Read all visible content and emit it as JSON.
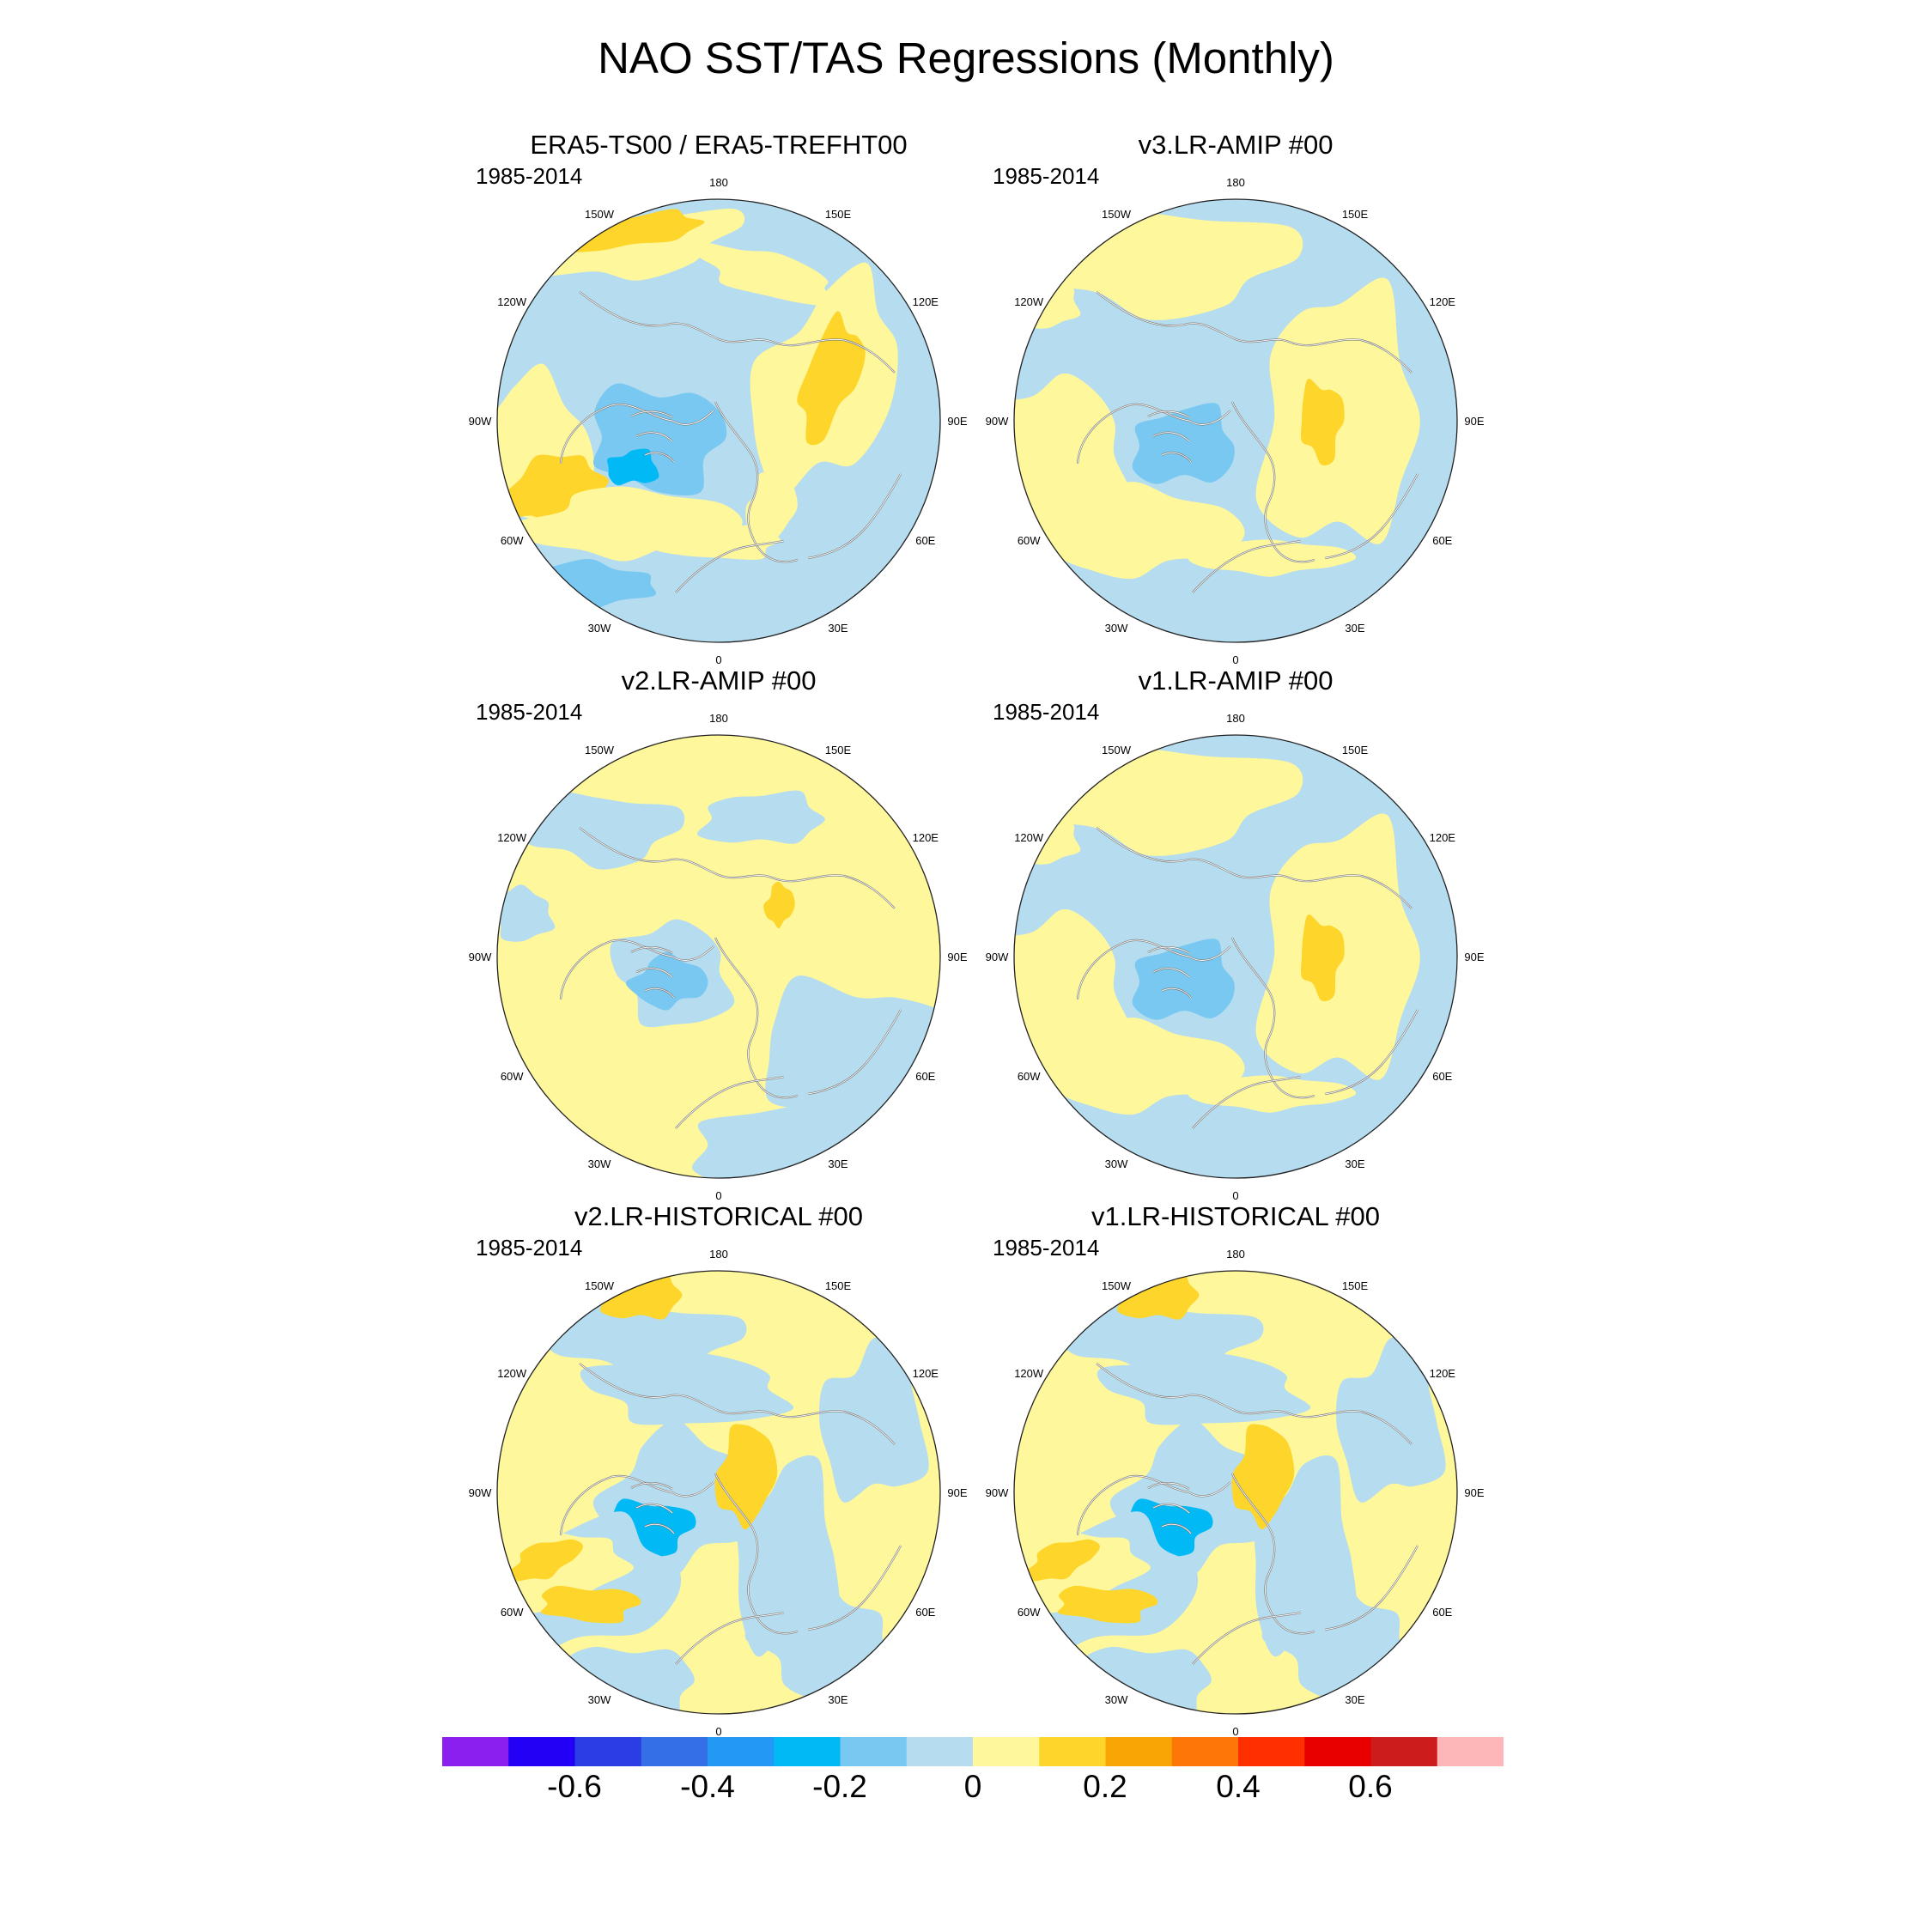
{
  "title": "NAO SST/TAS Regressions (Monthly)",
  "panels": [
    {
      "title": "ERA5-TS00 / ERA5-TREFHT00",
      "period": "1985-2014",
      "pattern": "era5"
    },
    {
      "title": "v3.LR-AMIP  #00",
      "period": "1985-2014",
      "pattern": "amip"
    },
    {
      "title": "v2.LR-AMIP  #00",
      "period": "1985-2014",
      "pattern": "amip2"
    },
    {
      "title": "v1.LR-AMIP  #00",
      "period": "1985-2014",
      "pattern": "amip"
    },
    {
      "title": "v2.LR-HISTORICAL  #00",
      "period": "1985-2014",
      "pattern": "hist"
    },
    {
      "title": "v1.LR-HISTORICAL  #00",
      "period": "1985-2014",
      "pattern": "hist"
    }
  ],
  "lon_labels": [
    "180",
    "150E",
    "120E",
    "90E",
    "60E",
    "30E",
    "0",
    "30W",
    "60W",
    "90W",
    "120W",
    "150W"
  ],
  "colorbar": {
    "labels": [
      "-0.6",
      "-0.4",
      "-0.2",
      "0",
      "0.2",
      "0.4",
      "0.6"
    ],
    "colors": [
      "#8a1ff0",
      "#2300f5",
      "#2b3ee6",
      "#346fe8",
      "#2398f5",
      "#00b9f5",
      "#78c8f1",
      "#b5dcef",
      "#fff79b",
      "#fdd52b",
      "#f9a503",
      "#fd7708",
      "#ff2f00",
      "#e80000",
      "#cc1c1c",
      "#fdb7b9"
    ]
  }
}
